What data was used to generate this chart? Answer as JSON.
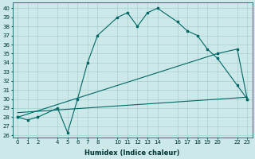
{
  "xlabel": "Humidex (Indice chaleur)",
  "background_color": "#cde8e8",
  "grid_color": "#a0c8c8",
  "line_color": "#006666",
  "xlim": [
    -0.5,
    23.5
  ],
  "ylim": [
    25.8,
    40.6
  ],
  "yticks": [
    26,
    27,
    28,
    29,
    30,
    31,
    32,
    33,
    34,
    35,
    36,
    37,
    38,
    39,
    40
  ],
  "xticks": [
    0,
    1,
    2,
    4,
    5,
    6,
    7,
    8,
    10,
    11,
    12,
    13,
    14,
    16,
    17,
    18,
    19,
    20,
    22,
    23
  ],
  "series1_x": [
    0,
    1,
    2,
    4,
    5,
    6,
    7,
    8,
    10,
    11,
    12,
    13,
    14,
    16,
    17,
    18,
    19,
    20,
    22,
    23
  ],
  "series1_y": [
    28.0,
    27.7,
    28.0,
    29.0,
    26.3,
    30.0,
    34.0,
    37.0,
    39.0,
    39.5,
    38.0,
    39.5,
    40.0,
    38.5,
    37.5,
    37.0,
    35.5,
    34.5,
    31.5,
    30.0
  ],
  "series2_x": [
    0,
    20,
    22,
    23
  ],
  "series2_y": [
    28.0,
    35.0,
    35.5,
    30.0
  ],
  "series3_x": [
    0,
    23
  ],
  "series3_y": [
    28.5,
    30.2
  ],
  "tick_fontsize": 5.0,
  "xlabel_fontsize": 6.0,
  "figsize": [
    3.2,
    2.0
  ],
  "dpi": 100
}
